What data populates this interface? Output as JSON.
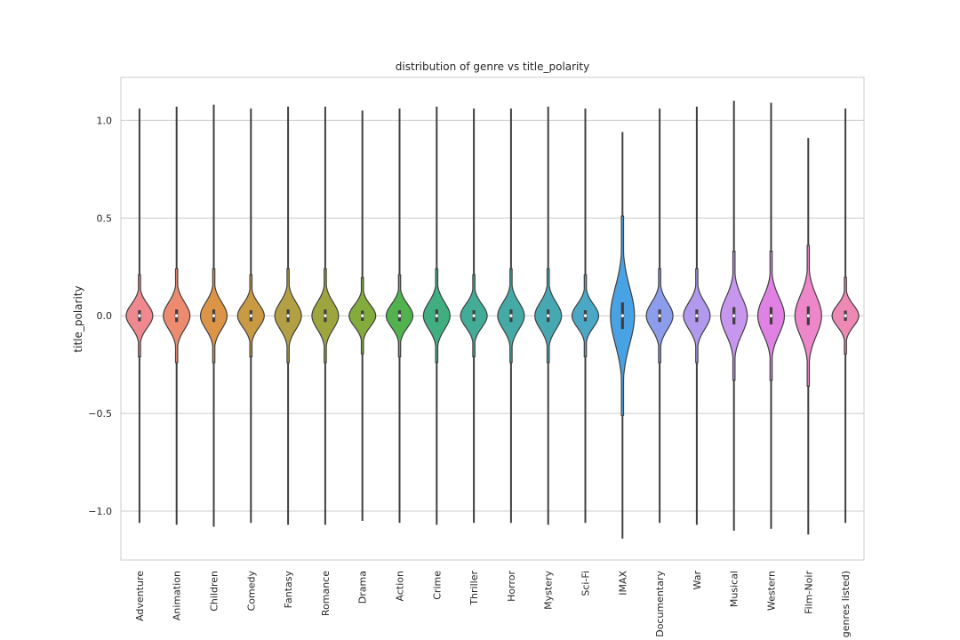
{
  "chart_data": {
    "type": "violin",
    "title": "distribution of genre vs title_polarity",
    "xlabel": "",
    "ylabel": "title_polarity",
    "ylim": [
      -1.25,
      1.22
    ],
    "yticks": [
      -1.0,
      -0.5,
      0.0,
      0.5,
      1.0
    ],
    "ytick_labels": [
      "−1.0",
      "−0.5",
      "0.0",
      "0.5",
      "1.0"
    ],
    "grid": true,
    "categories": [
      "Adventure",
      "Animation",
      "Children",
      "Comedy",
      "Fantasy",
      "Romance",
      "Drama",
      "Action",
      "Crime",
      "Thriller",
      "Horror",
      "Mystery",
      "Sci-Fi",
      "IMAX",
      "Documentary",
      "War",
      "Musical",
      "Western",
      "Film-Noir",
      "genres listed)"
    ],
    "colors": [
      "#f0888f",
      "#ec8b6f",
      "#dc9447",
      "#c89a44",
      "#b4a044",
      "#9da53e",
      "#83ac3d",
      "#51b24f",
      "#41ae82",
      "#43ac97",
      "#45aaa5",
      "#46a9b2",
      "#4aa8c6",
      "#49a2e3",
      "#8d9ded",
      "#b19aed",
      "#c796ee",
      "#e082e3",
      "#ee86ca",
      "#ee89b4"
    ],
    "range_min": [
      -1.06,
      -1.07,
      -1.08,
      -1.06,
      -1.07,
      -1.07,
      -1.05,
      -1.06,
      -1.07,
      -1.06,
      -1.06,
      -1.07,
      -1.06,
      -1.14,
      -1.06,
      -1.07,
      -1.1,
      -1.09,
      -1.12,
      -1.06
    ],
    "range_max": [
      1.06,
      1.07,
      1.08,
      1.06,
      1.07,
      1.07,
      1.05,
      1.06,
      1.07,
      1.06,
      1.06,
      1.07,
      1.06,
      0.94,
      1.06,
      1.07,
      1.1,
      1.09,
      0.91,
      1.06
    ],
    "median": [
      0,
      0,
      0,
      0,
      0,
      0,
      0,
      0,
      0,
      0,
      0,
      0,
      0,
      0,
      0,
      0,
      0,
      0,
      0,
      0
    ],
    "spread": [
      0.07,
      0.08,
      0.08,
      0.07,
      0.08,
      0.08,
      0.065,
      0.07,
      0.08,
      0.07,
      0.08,
      0.08,
      0.07,
      0.17,
      0.08,
      0.08,
      0.11,
      0.11,
      0.12,
      0.065
    ]
  }
}
